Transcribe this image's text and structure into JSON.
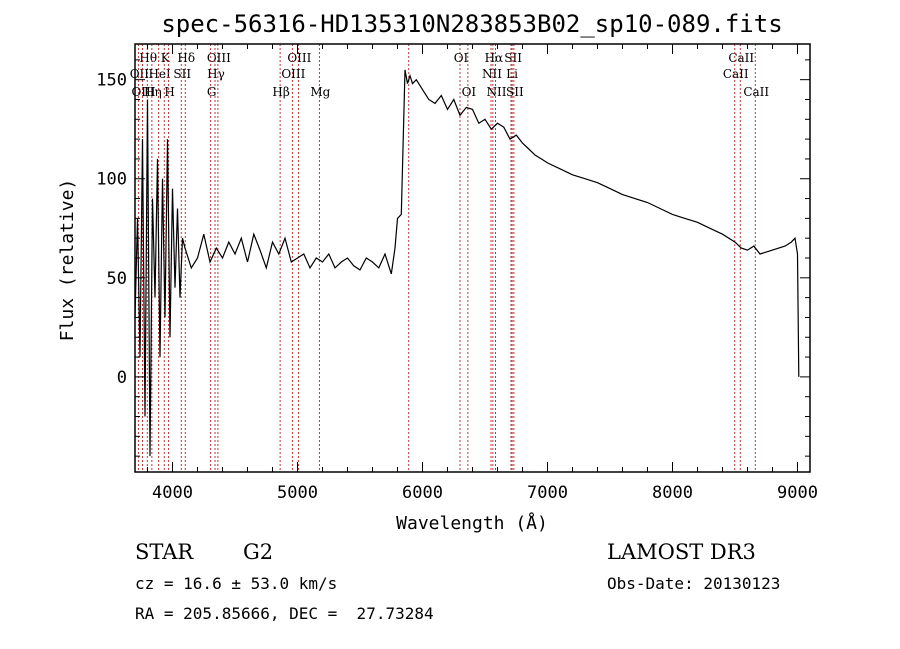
{
  "chart_data": {
    "type": "line",
    "title": "spec-56316-HD135310N283853B02_sp10-089.fits",
    "xlabel": "Wavelength (Å)",
    "ylabel": "Flux (relative)",
    "xlim": [
      3700,
      9100
    ],
    "ylim": [
      -48,
      168
    ],
    "xticks": [
      4000,
      5000,
      6000,
      7000,
      8000,
      9000
    ],
    "yticks": [
      0,
      50,
      100,
      150
    ],
    "series": [
      {
        "color": "#000000",
        "x": [
          3700,
          3720,
          3740,
          3760,
          3780,
          3800,
          3820,
          3840,
          3860,
          3880,
          3900,
          3920,
          3940,
          3960,
          3980,
          4000,
          4020,
          4040,
          4060,
          4080,
          4100,
          4150,
          4200,
          4250,
          4300,
          4350,
          4400,
          4450,
          4500,
          4550,
          4600,
          4650,
          4700,
          4750,
          4800,
          4850,
          4900,
          4950,
          5000,
          5050,
          5100,
          5150,
          5200,
          5250,
          5300,
          5350,
          5400,
          5450,
          5500,
          5550,
          5600,
          5650,
          5700,
          5750,
          5780,
          5800,
          5830,
          5860,
          5880,
          5900,
          5920,
          5950,
          6000,
          6050,
          6100,
          6150,
          6200,
          6250,
          6300,
          6350,
          6400,
          6450,
          6500,
          6550,
          6600,
          6650,
          6700,
          6750,
          6800,
          6850,
          6900,
          6950,
          7000,
          7100,
          7200,
          7300,
          7400,
          7500,
          7600,
          7700,
          7800,
          7900,
          8000,
          8100,
          8200,
          8300,
          8400,
          8500,
          8550,
          8600,
          8650,
          8700,
          8800,
          8900,
          8950,
          8980,
          9000,
          9010
        ],
        "y": [
          30,
          80,
          10,
          120,
          -20,
          140,
          -40,
          90,
          40,
          110,
          10,
          100,
          30,
          120,
          20,
          95,
          45,
          85,
          40,
          70,
          65,
          55,
          60,
          72,
          58,
          65,
          60,
          68,
          62,
          70,
          58,
          72,
          64,
          55,
          68,
          62,
          70,
          58,
          60,
          62,
          55,
          60,
          58,
          62,
          55,
          58,
          60,
          56,
          54,
          60,
          58,
          55,
          62,
          52,
          65,
          80,
          82,
          155,
          148,
          152,
          148,
          150,
          145,
          140,
          138,
          142,
          135,
          140,
          132,
          136,
          135,
          128,
          130,
          125,
          128,
          126,
          120,
          122,
          118,
          115,
          112,
          110,
          108,
          105,
          102,
          100,
          98,
          95,
          92,
          90,
          88,
          85,
          82,
          80,
          78,
          75,
          72,
          68,
          65,
          64,
          66,
          62,
          64,
          66,
          68,
          70,
          62,
          0
        ]
      }
    ],
    "spectral_lines": [
      {
        "label": "Hθ",
        "x": 3798,
        "row": 1
      },
      {
        "label": "OII",
        "x": 3727,
        "row": 2
      },
      {
        "label": "OIII",
        "x": 3760,
        "row": 3
      },
      {
        "label": "Hη",
        "x": 3835,
        "row": 3
      },
      {
        "label": "K",
        "x": 3934,
        "row": 1
      },
      {
        "label": "HeI",
        "x": 3889,
        "row": 2
      },
      {
        "label": "SII",
        "x": 4070,
        "row": 2
      },
      {
        "label": "H",
        "x": 3969,
        "row": 3
      },
      {
        "label": "Hδ",
        "x": 4102,
        "row": 1
      },
      {
        "label": "OIII",
        "x": 4363,
        "row": 1
      },
      {
        "label": "Hγ",
        "x": 4340,
        "row": 2
      },
      {
        "label": "G",
        "x": 4305,
        "row": 3
      },
      {
        "label": "OIII",
        "x": 5007,
        "row": 1
      },
      {
        "label": "OIII",
        "x": 4959,
        "row": 2
      },
      {
        "label": "Hβ",
        "x": 4861,
        "row": 3
      },
      {
        "label": "Mg",
        "x": 5175,
        "row": 3
      },
      {
        "label": "OI",
        "x": 6300,
        "row": 1
      },
      {
        "label": "OI",
        "x": 6363,
        "row": 3
      },
      {
        "label": "Hα",
        "x": 6563,
        "row": 1
      },
      {
        "label": "NII",
        "x": 6548,
        "row": 2
      },
      {
        "label": "NII",
        "x": 6584,
        "row": 3
      },
      {
        "label": "SII",
        "x": 6717,
        "row": 1
      },
      {
        "label": "Li",
        "x": 6708,
        "row": 2
      },
      {
        "label": "SII",
        "x": 6731,
        "row": 3
      },
      {
        "label": "CaII",
        "x": 8542,
        "row": 1
      },
      {
        "label": "CaII",
        "x": 8498,
        "row": 2
      },
      {
        "label": "CaII",
        "x": 8662,
        "row": 3
      }
    ],
    "extra_dotted_lines": [
      5890
    ]
  },
  "info": {
    "class_label": "STAR",
    "subclass": "G2",
    "survey": "LAMOST DR3",
    "redshift": "cz = 16.6 ± 53.0 km/s",
    "obs_date": "Obs-Date: 20130123",
    "coords": "RA = 205.85666, DEC =  27.73284"
  }
}
